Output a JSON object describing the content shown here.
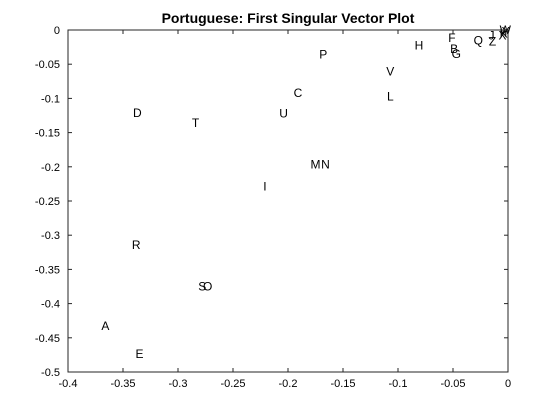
{
  "chart_data": {
    "type": "scatter",
    "title": "Portuguese: First Singular Vector Plot",
    "xlabel": "",
    "ylabel": "",
    "xlim": [
      -0.4,
      0
    ],
    "ylim": [
      -0.5,
      0
    ],
    "xticks": [
      "-0.4",
      "-0.35",
      "-0.3",
      "-0.25",
      "-0.2",
      "-0.15",
      "-0.1",
      "-0.05",
      "0"
    ],
    "yticks": [
      "0",
      "-0.05",
      "-0.1",
      "-0.15",
      "-0.2",
      "-0.25",
      "-0.3",
      "-0.35",
      "-0.4",
      "-0.45",
      "-0.5"
    ],
    "grid": false,
    "points": [
      {
        "label": "A",
        "x": -0.366,
        "y": -0.433
      },
      {
        "label": "B",
        "x": -0.049,
        "y": -0.028
      },
      {
        "label": "C",
        "x": -0.191,
        "y": -0.092
      },
      {
        "label": "D",
        "x": -0.337,
        "y": -0.121
      },
      {
        "label": "E",
        "x": -0.335,
        "y": -0.474
      },
      {
        "label": "F",
        "x": -0.051,
        "y": -0.012
      },
      {
        "label": "G",
        "x": -0.047,
        "y": -0.035
      },
      {
        "label": "H",
        "x": -0.081,
        "y": -0.023
      },
      {
        "label": "I",
        "x": -0.221,
        "y": -0.229
      },
      {
        "label": "J",
        "x": -0.015,
        "y": -0.008
      },
      {
        "label": "K",
        "x": -0.004,
        "y": -0.005
      },
      {
        "label": "L",
        "x": -0.107,
        "y": -0.097
      },
      {
        "label": "M",
        "x": -0.175,
        "y": -0.197
      },
      {
        "label": "N",
        "x": -0.166,
        "y": -0.197
      },
      {
        "label": "O",
        "x": -0.273,
        "y": -0.375
      },
      {
        "label": "P",
        "x": -0.168,
        "y": -0.036
      },
      {
        "label": "Q",
        "x": -0.027,
        "y": -0.015
      },
      {
        "label": "R",
        "x": -0.338,
        "y": -0.314
      },
      {
        "label": "S",
        "x": -0.278,
        "y": -0.375
      },
      {
        "label": "T",
        "x": -0.284,
        "y": -0.136
      },
      {
        "label": "U",
        "x": -0.204,
        "y": -0.122
      },
      {
        "label": "V",
        "x": -0.107,
        "y": -0.061
      },
      {
        "label": "W",
        "x": -0.0025,
        "y": 0.0
      },
      {
        "label": "X",
        "x": -0.005,
        "y": -0.008
      },
      {
        "label": "Y",
        "x": -0.002,
        "y": -0.002
      },
      {
        "label": "Z",
        "x": -0.014,
        "y": -0.017
      }
    ]
  }
}
